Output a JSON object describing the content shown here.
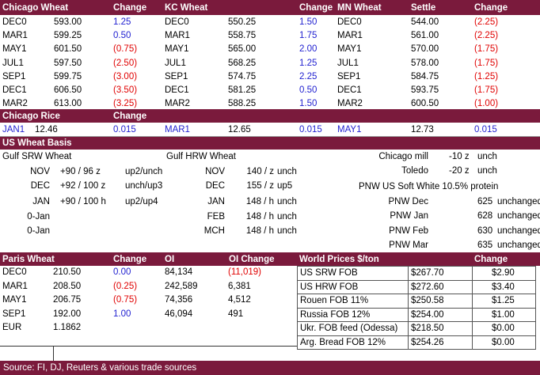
{
  "futures": {
    "headers": [
      "Chicago Wheat",
      "Change",
      "KC Wheat",
      "Change",
      "MN Wheat",
      "Settle",
      "Change"
    ],
    "rows": [
      [
        "DEC0",
        "593.00",
        "1.25",
        "DEC0",
        "550.25",
        "1.50",
        "DEC0",
        "544.00",
        "(2.25)"
      ],
      [
        "MAR1",
        "599.25",
        "0.50",
        "MAR1",
        "558.75",
        "1.75",
        "MAR1",
        "561.00",
        "(2.25)"
      ],
      [
        "MAY1",
        "601.50",
        "(0.75)",
        "MAY1",
        "565.00",
        "2.00",
        "MAY1",
        "570.00",
        "(1.75)"
      ],
      [
        "JUL1",
        "597.50",
        "(2.50)",
        "JUL1",
        "568.25",
        "1.25",
        "JUL1",
        "578.00",
        "(1.75)"
      ],
      [
        "SEP1",
        "599.75",
        "(3.00)",
        "SEP1",
        "574.75",
        "2.25",
        "SEP1",
        "584.75",
        "(1.25)"
      ],
      [
        "DEC1",
        "606.50",
        "(3.50)",
        "DEC1",
        "581.25",
        "0.50",
        "DEC1",
        "593.75",
        "(1.75)"
      ],
      [
        "MAR2",
        "613.00",
        "(3.25)",
        "MAR2",
        "588.25",
        "1.50",
        "MAR2",
        "600.50",
        "(1.00)"
      ]
    ]
  },
  "rice": {
    "headers": [
      "Chicago Rice",
      "Change"
    ],
    "row": [
      "JAN1",
      "12.46",
      "0.015",
      "MAR1",
      "12.65",
      "0.015",
      "MAY1",
      "12.73",
      "0.015"
    ]
  },
  "basis": {
    "title": "US Wheat Basis",
    "gulf_srw": {
      "title": "Gulf SRW Wheat",
      "rows": [
        [
          "NOV",
          "+90 / 96 z",
          "up2/unch"
        ],
        [
          "DEC",
          "+92 / 100 z",
          "unch/up3"
        ],
        [
          "JAN",
          "+90 / 100 h",
          "up2/up4"
        ],
        [
          "0-Jan"
        ],
        [
          "0-Jan"
        ]
      ]
    },
    "gulf_hrw": {
      "title": "Gulf HRW Wheat",
      "rows": [
        [
          "NOV",
          "140 / z",
          "unch"
        ],
        [
          "DEC",
          "155 / z",
          "up5"
        ],
        [
          "JAN",
          "148 / h",
          "unch"
        ],
        [
          "FEB",
          "148 / h",
          "unch"
        ],
        [
          "MCH",
          "148 / h",
          "unch"
        ]
      ]
    },
    "mills": [
      [
        "Chicago mill",
        "-10 z",
        "unch"
      ],
      [
        "Toledo",
        "-20 z",
        "unch"
      ]
    ],
    "pnw_note": "PNW US Soft White 10.5% protein",
    "pnw": [
      [
        "PNW Dec",
        "625",
        "unchanged"
      ],
      [
        "PNW Jan",
        "628",
        "unchanged"
      ],
      [
        "PNW Feb",
        "630",
        "unchanged"
      ],
      [
        "PNW Mar",
        "635",
        "unchanged"
      ]
    ]
  },
  "paris": {
    "headers": [
      "Paris Wheat",
      "Change",
      "OI",
      "OI Change"
    ],
    "rows": [
      [
        "DEC0",
        "210.50",
        "0.00",
        "84,134",
        "(11,019)"
      ],
      [
        "MAR1",
        "208.50",
        "(0.25)",
        "242,589",
        "6,381"
      ],
      [
        "MAY1",
        "206.75",
        "(0.75)",
        "74,356",
        "4,512"
      ],
      [
        "SEP1",
        "192.00",
        "1.00",
        "46,094",
        "491"
      ]
    ],
    "eur": [
      "EUR",
      "1.1862"
    ]
  },
  "world": {
    "headers": [
      "World Prices $/ton",
      "Change"
    ],
    "rows": [
      [
        "US SRW FOB",
        "$267.70",
        "$2.90"
      ],
      [
        "US HRW FOB",
        "$272.60",
        "$3.40"
      ],
      [
        "Rouen FOB 11%",
        "$250.58",
        "$1.25"
      ],
      [
        "Russia FOB 12%",
        "$254.00",
        "$1.00"
      ],
      [
        "Ukr. FOB feed (Odessa)",
        "$218.50",
        "$0.00"
      ],
      [
        "Arg. Bread FOB 12%",
        "$254.26",
        "$0.00"
      ]
    ]
  },
  "footer": "Source: FI, DJ, Reuters & various trade sources"
}
